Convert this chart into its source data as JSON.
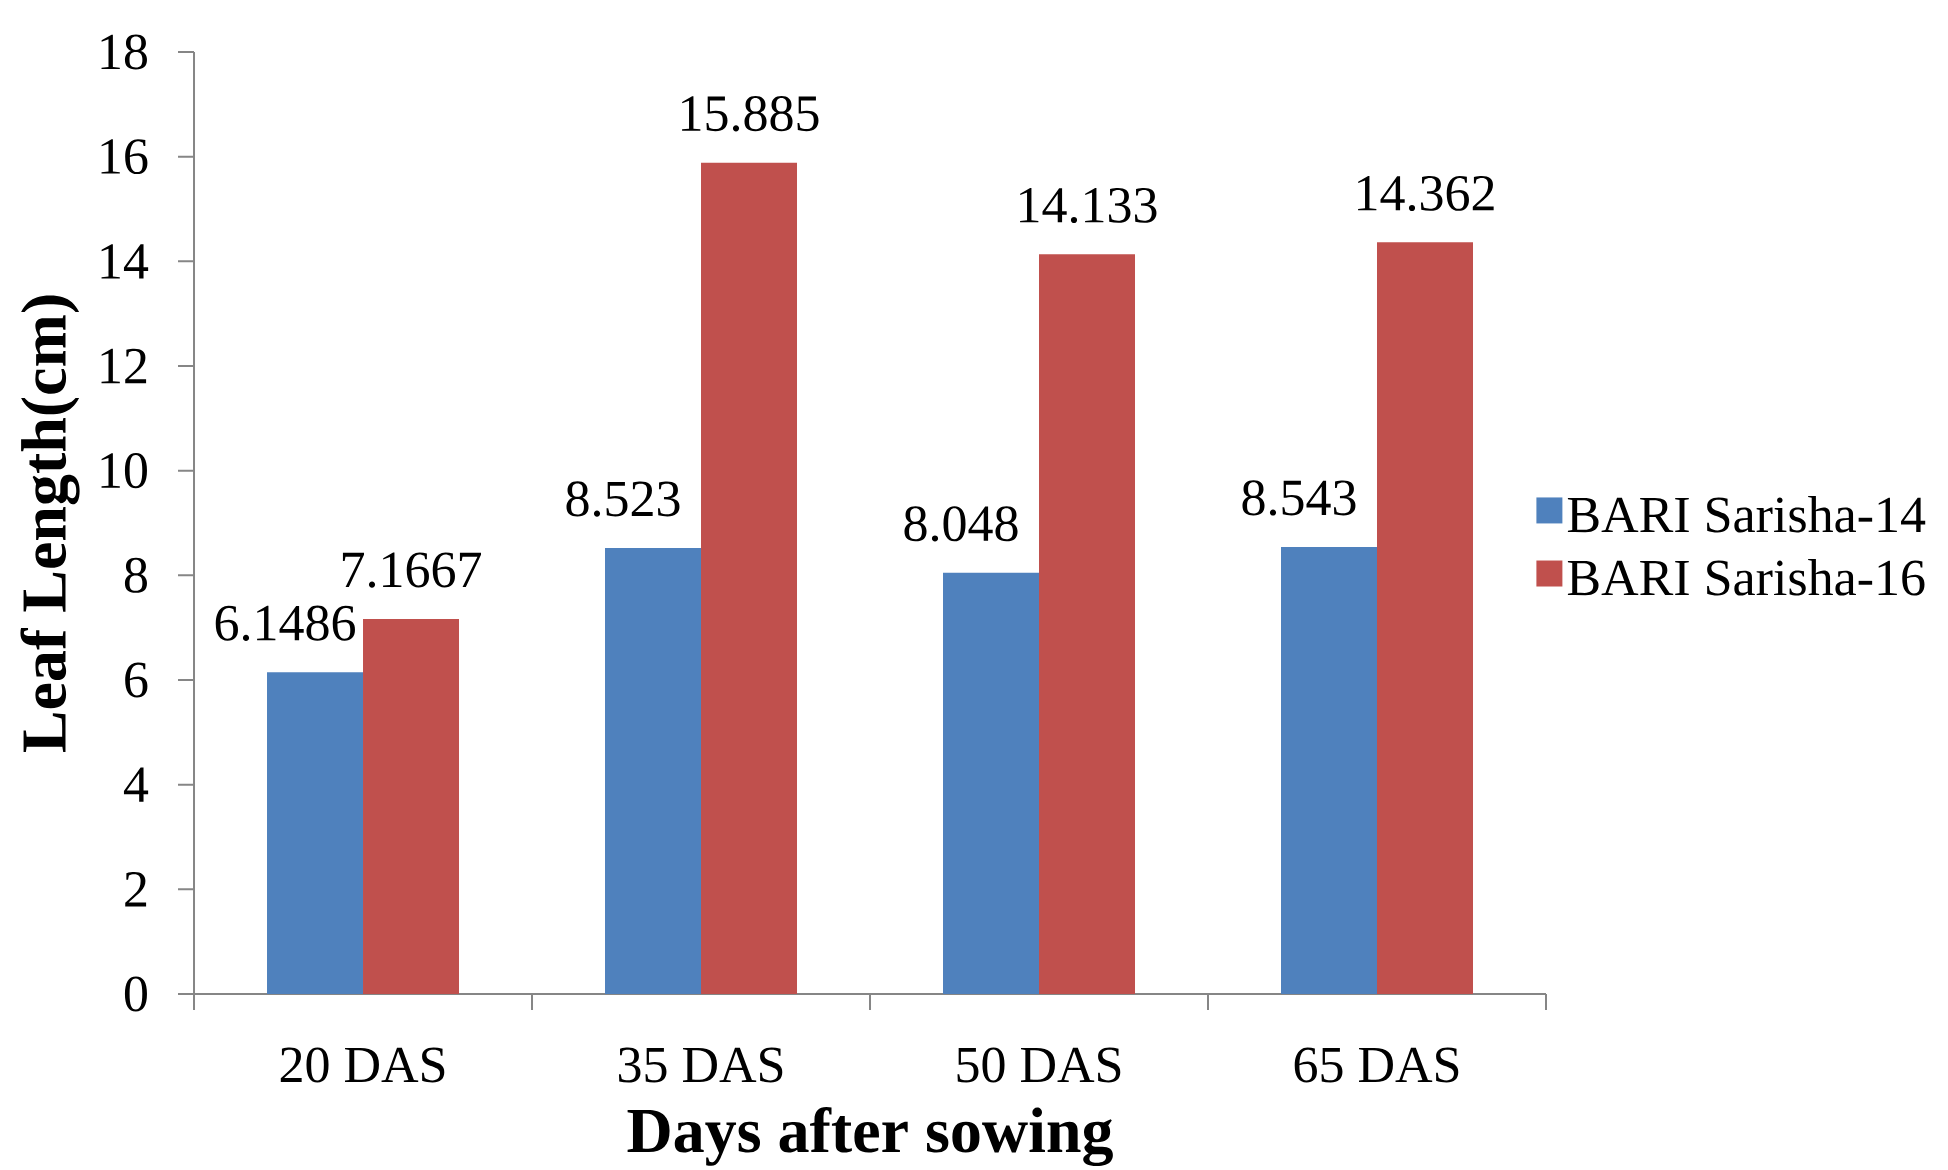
{
  "chart_data": {
    "type": "bar",
    "xlabel": "Days after sowing",
    "ylabel": "Leaf Length(cm)",
    "categories": [
      "20 DAS",
      "35 DAS",
      "50 DAS",
      "65 DAS"
    ],
    "series": [
      {
        "name": "BARI Sarisha-14",
        "color": "#4f81bd",
        "values": [
          6.1486,
          8.523,
          8.048,
          8.543
        ]
      },
      {
        "name": "BARI Sarisha-16",
        "color": "#c0504d",
        "values": [
          7.1667,
          15.885,
          14.133,
          14.362
        ]
      }
    ],
    "ylim": [
      0,
      18
    ],
    "yticks": [
      0,
      2,
      4,
      6,
      8,
      10,
      12,
      14,
      16,
      18
    ],
    "data_labels": true,
    "legend": "right"
  }
}
